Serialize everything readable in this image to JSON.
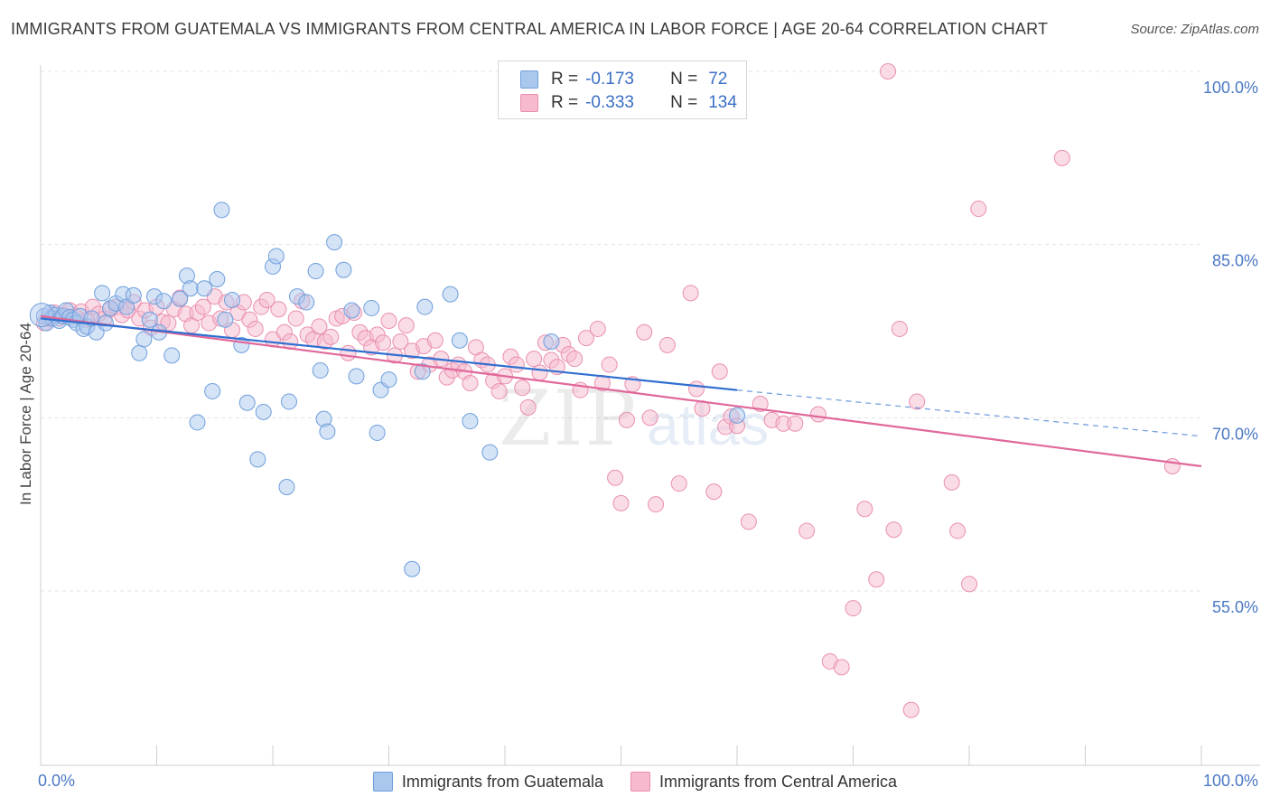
{
  "header": {
    "title": "IMMIGRANTS FROM GUATEMALA VS IMMIGRANTS FROM CENTRAL AMERICA IN LABOR FORCE | AGE 20-64 CORRELATION CHART",
    "source": "Source: ZipAtlas.com"
  },
  "legend": {
    "row1": {
      "r_label": "R =",
      "r_value": "-0.173",
      "n_label": "N =",
      "n_value": "72"
    },
    "row2": {
      "r_label": "R =",
      "r_value": "-0.333",
      "n_label": "N =",
      "n_value": "134"
    }
  },
  "colors": {
    "blue_fill": "#aac8ee",
    "blue_stroke": "#6f9fdc",
    "blue_line": "#2f6fd0",
    "pink_fill": "#f6b9cd",
    "pink_stroke": "#ea8fb0",
    "pink_line": "#e0689a",
    "tick_text": "#4a78c4"
  },
  "watermark": {
    "zip": "ZIP",
    "atlas": "atlas"
  },
  "chart_data": {
    "type": "scatter",
    "title": "IMMIGRANTS FROM GUATEMALA VS IMMIGRANTS FROM CENTRAL AMERICA IN LABOR FORCE | AGE 20-64 CORRELATION CHART",
    "xlabel": "",
    "ylabel": "In Labor Force | Age 20-64",
    "xlim": [
      0,
      100
    ],
    "ylim": [
      41,
      102
    ],
    "x_tick_labels": [
      "0.0%",
      "100.0%"
    ],
    "y_ticks": [
      55,
      70,
      85,
      100
    ],
    "y_tick_labels": [
      "55.0%",
      "70.0%",
      "85.0%",
      "100.0%"
    ],
    "grid": true,
    "legend_position": "top-center",
    "series": [
      {
        "name": "Immigrants from Guatemala",
        "r": -0.173,
        "n": 72,
        "trend": {
          "x0": 0,
          "y0": 78.6,
          "x1": 60,
          "y1": 72.4,
          "dashed_to_x": 100,
          "dashed_to_y": 68.4
        },
        "points": [
          [
            0.3,
            78.8
          ],
          [
            0.5,
            78.2
          ],
          [
            0.8,
            79.1
          ],
          [
            1.0,
            78.6
          ],
          [
            1.3,
            78.9
          ],
          [
            1.6,
            78.4
          ],
          [
            1.9,
            78.8
          ],
          [
            2.2,
            79.3
          ],
          [
            2.5,
            78.7
          ],
          [
            2.8,
            78.5
          ],
          [
            3.1,
            78.2
          ],
          [
            3.4,
            78.8
          ],
          [
            3.7,
            77.7
          ],
          [
            4.0,
            77.9
          ],
          [
            4.4,
            78.6
          ],
          [
            4.8,
            77.4
          ],
          [
            5.3,
            80.8
          ],
          [
            5.6,
            78.2
          ],
          [
            6.0,
            79.5
          ],
          [
            6.5,
            79.9
          ],
          [
            7.1,
            80.7
          ],
          [
            7.4,
            79.6
          ],
          [
            8.0,
            80.6
          ],
          [
            8.5,
            75.6
          ],
          [
            8.9,
            76.8
          ],
          [
            9.4,
            78.5
          ],
          [
            9.8,
            80.5
          ],
          [
            10.2,
            77.4
          ],
          [
            10.6,
            80.1
          ],
          [
            11.3,
            75.4
          ],
          [
            12.0,
            80.3
          ],
          [
            12.6,
            82.3
          ],
          [
            12.9,
            81.2
          ],
          [
            13.5,
            69.6
          ],
          [
            14.1,
            81.2
          ],
          [
            14.8,
            72.3
          ],
          [
            15.2,
            82.0
          ],
          [
            15.6,
            88.0
          ],
          [
            15.9,
            78.5
          ],
          [
            16.5,
            80.2
          ],
          [
            17.3,
            76.3
          ],
          [
            17.8,
            71.3
          ],
          [
            18.7,
            66.4
          ],
          [
            19.2,
            70.5
          ],
          [
            20.0,
            83.1
          ],
          [
            20.3,
            84.0
          ],
          [
            21.2,
            64.0
          ],
          [
            21.4,
            71.4
          ],
          [
            22.1,
            80.5
          ],
          [
            22.9,
            80.0
          ],
          [
            23.7,
            82.7
          ],
          [
            24.1,
            74.1
          ],
          [
            24.4,
            69.9
          ],
          [
            24.7,
            68.8
          ],
          [
            25.3,
            85.2
          ],
          [
            26.1,
            82.8
          ],
          [
            26.8,
            79.3
          ],
          [
            27.2,
            73.6
          ],
          [
            28.5,
            79.5
          ],
          [
            29.0,
            68.7
          ],
          [
            29.3,
            72.4
          ],
          [
            30.0,
            73.3
          ],
          [
            32.0,
            56.9
          ],
          [
            32.9,
            74.0
          ],
          [
            33.1,
            79.6
          ],
          [
            35.3,
            80.7
          ],
          [
            36.1,
            76.7
          ],
          [
            37.0,
            69.7
          ],
          [
            38.7,
            67.0
          ],
          [
            40.5,
            100.2
          ],
          [
            44.0,
            76.6
          ],
          [
            60.0,
            70.2
          ]
        ]
      },
      {
        "name": "Immigrants from Central America",
        "r": -0.333,
        "n": 134,
        "trend": {
          "x0": 0,
          "y0": 78.8,
          "x1": 100,
          "y1": 65.8
        },
        "points": [
          [
            0.3,
            78.2
          ],
          [
            0.7,
            78.6
          ],
          [
            1.2,
            79.1
          ],
          [
            1.6,
            78.6
          ],
          [
            2.0,
            78.9
          ],
          [
            2.5,
            79.3
          ],
          [
            3.0,
            78.8
          ],
          [
            3.5,
            79.2
          ],
          [
            4.0,
            78.5
          ],
          [
            4.5,
            79.6
          ],
          [
            5.0,
            79.0
          ],
          [
            5.5,
            78.6
          ],
          [
            6.0,
            79.4
          ],
          [
            6.5,
            79.6
          ],
          [
            7.0,
            78.9
          ],
          [
            7.5,
            79.3
          ],
          [
            8.0,
            80.0
          ],
          [
            8.5,
            78.6
          ],
          [
            9.0,
            79.3
          ],
          [
            9.5,
            77.8
          ],
          [
            10.0,
            79.6
          ],
          [
            10.5,
            78.3
          ],
          [
            11.0,
            78.2
          ],
          [
            11.5,
            79.4
          ],
          [
            12.0,
            80.4
          ],
          [
            12.5,
            79.0
          ],
          [
            13.0,
            78.0
          ],
          [
            13.5,
            79.1
          ],
          [
            14.0,
            79.6
          ],
          [
            14.5,
            78.2
          ],
          [
            15.0,
            80.5
          ],
          [
            15.5,
            78.6
          ],
          [
            16.0,
            80.0
          ],
          [
            16.5,
            77.6
          ],
          [
            17.0,
            79.1
          ],
          [
            17.5,
            80.0
          ],
          [
            18.0,
            78.5
          ],
          [
            18.5,
            77.7
          ],
          [
            19.0,
            79.6
          ],
          [
            19.5,
            80.2
          ],
          [
            20.0,
            76.8
          ],
          [
            20.5,
            79.4
          ],
          [
            21.0,
            77.4
          ],
          [
            21.5,
            76.6
          ],
          [
            22.0,
            78.6
          ],
          [
            22.5,
            80.1
          ],
          [
            23.0,
            77.2
          ],
          [
            23.5,
            76.8
          ],
          [
            24.0,
            77.9
          ],
          [
            24.5,
            76.6
          ],
          [
            25.0,
            77.0
          ],
          [
            25.5,
            78.6
          ],
          [
            26.0,
            78.8
          ],
          [
            26.5,
            75.6
          ],
          [
            27.0,
            79.1
          ],
          [
            27.5,
            77.4
          ],
          [
            28.0,
            76.9
          ],
          [
            28.5,
            76.1
          ],
          [
            29.0,
            77.2
          ],
          [
            29.5,
            76.5
          ],
          [
            30.0,
            78.4
          ],
          [
            30.5,
            75.4
          ],
          [
            31.0,
            76.6
          ],
          [
            31.5,
            78.0
          ],
          [
            32.0,
            75.8
          ],
          [
            32.5,
            74.0
          ],
          [
            33.0,
            76.2
          ],
          [
            33.5,
            74.6
          ],
          [
            34.0,
            76.7
          ],
          [
            34.5,
            75.1
          ],
          [
            35.0,
            73.5
          ],
          [
            35.5,
            74.1
          ],
          [
            36.0,
            74.6
          ],
          [
            36.5,
            74.0
          ],
          [
            37.0,
            73.0
          ],
          [
            37.5,
            76.1
          ],
          [
            38.0,
            75.0
          ],
          [
            38.5,
            74.6
          ],
          [
            39.0,
            73.2
          ],
          [
            39.5,
            72.3
          ],
          [
            40.0,
            73.6
          ],
          [
            40.5,
            75.3
          ],
          [
            41.0,
            74.6
          ],
          [
            41.5,
            72.6
          ],
          [
            42.0,
            70.9
          ],
          [
            42.5,
            75.1
          ],
          [
            43.0,
            73.9
          ],
          [
            43.5,
            76.5
          ],
          [
            44.0,
            75.0
          ],
          [
            44.5,
            74.4
          ],
          [
            45.0,
            76.3
          ],
          [
            45.5,
            75.5
          ],
          [
            46.0,
            75.1
          ],
          [
            46.5,
            72.4
          ],
          [
            47.0,
            76.9
          ],
          [
            48.0,
            77.7
          ],
          [
            48.4,
            73.0
          ],
          [
            49.0,
            74.6
          ],
          [
            49.5,
            64.8
          ],
          [
            50.0,
            62.6
          ],
          [
            50.5,
            69.8
          ],
          [
            51.0,
            72.9
          ],
          [
            52.0,
            77.4
          ],
          [
            52.5,
            70.0
          ],
          [
            53.0,
            62.5
          ],
          [
            54.0,
            76.3
          ],
          [
            55.0,
            64.3
          ],
          [
            56.0,
            80.8
          ],
          [
            56.5,
            72.5
          ],
          [
            57.0,
            70.8
          ],
          [
            58.0,
            63.6
          ],
          [
            58.5,
            74.0
          ],
          [
            59.0,
            69.2
          ],
          [
            59.5,
            70.1
          ],
          [
            60.0,
            69.3
          ],
          [
            61.0,
            61.0
          ],
          [
            62.0,
            71.2
          ],
          [
            63.0,
            69.8
          ],
          [
            64.0,
            69.5
          ],
          [
            65.0,
            69.5
          ],
          [
            66.0,
            60.2
          ],
          [
            67.0,
            70.3
          ],
          [
            68.0,
            48.9
          ],
          [
            69.0,
            48.4
          ],
          [
            70.0,
            53.5
          ],
          [
            71.0,
            62.1
          ],
          [
            72.0,
            56.0
          ],
          [
            73.0,
            100.0
          ],
          [
            73.5,
            60.3
          ],
          [
            74.0,
            77.7
          ],
          [
            75.0,
            44.7
          ],
          [
            75.5,
            71.4
          ],
          [
            78.5,
            64.4
          ],
          [
            79.0,
            60.2
          ],
          [
            80.0,
            55.6
          ],
          [
            80.8,
            88.1
          ],
          [
            88.0,
            92.5
          ],
          [
            97.5,
            65.8
          ]
        ]
      }
    ]
  }
}
